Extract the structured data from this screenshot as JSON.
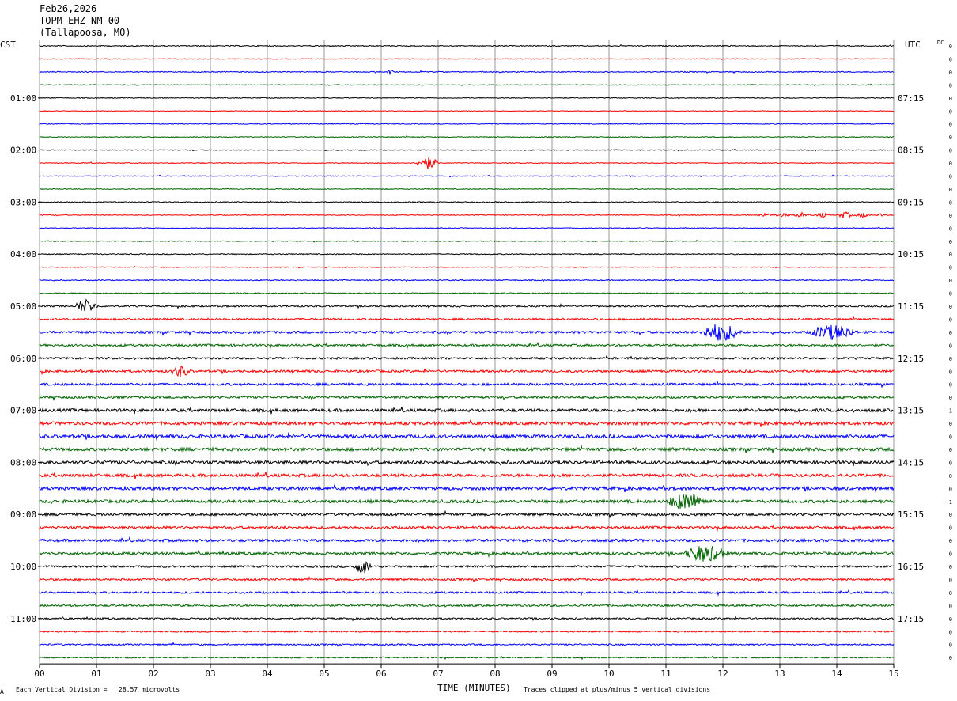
{
  "header": {
    "date": "Feb26,2026",
    "station": "TOPM EHZ NM 00",
    "location": "(Tallapoosa, MO)"
  },
  "axes": {
    "left_zone": "CST",
    "right_zone": "UTC",
    "dc_label": "DC",
    "xlabel": "TIME (MINUTES)",
    "x_ticks": [
      "00",
      "01",
      "02",
      "03",
      "04",
      "05",
      "06",
      "07",
      "08",
      "09",
      "10",
      "11",
      "12",
      "13",
      "14",
      "15"
    ],
    "left_hour_labels": [
      "01:00",
      "02:00",
      "03:00",
      "04:00",
      "05:00",
      "06:00",
      "07:00",
      "08:00",
      "09:00",
      "10:00",
      "11:00"
    ],
    "right_hour_labels": [
      "07:15",
      "08:15",
      "09:15",
      "10:15",
      "11:15",
      "12:15",
      "13:15",
      "14:15",
      "15:15",
      "16:15",
      "17:15"
    ]
  },
  "footer": {
    "scale_note": "Each Vertical Division =   28.57 microvolts",
    "clip_note": "Traces clipped at plus/minus 5 vertical divisions",
    "corner_mark": "A"
  },
  "colors": {
    "black": "#000000",
    "red": "#ff0000",
    "blue": "#0000ff",
    "green": "#006400",
    "grid": "#808080"
  },
  "chart_data": {
    "type": "helicorder",
    "minutes_per_line": 15,
    "rows": 48,
    "color_cycle": [
      "#000000",
      "#ff0000",
      "#0000ff",
      "#006400"
    ],
    "dc_offsets": [
      "0",
      "0",
      "0",
      "0",
      "0",
      "0",
      "0",
      "0",
      "0",
      "0",
      "0",
      "0",
      "0",
      "0",
      "0",
      "0",
      "0",
      "0",
      "0",
      "0",
      "0",
      "0",
      "0",
      "0",
      "0",
      "0",
      "0",
      "0",
      "-1",
      "0",
      "0",
      "0",
      "0",
      "0",
      "0",
      "-1",
      "0",
      "0",
      "0",
      "0",
      "0",
      "0",
      "0",
      "0",
      "0",
      "0",
      "0",
      "0"
    ],
    "row_noise_levels": [
      0.6,
      0.5,
      0.6,
      0.5,
      0.5,
      0.4,
      0.5,
      0.5,
      0.5,
      0.5,
      0.5,
      0.5,
      0.6,
      0.5,
      0.5,
      0.5,
      0.6,
      0.5,
      0.6,
      0.6,
      1.0,
      1.2,
      1.5,
      1.3,
      1.3,
      1.4,
      1.5,
      1.4,
      1.9,
      2.0,
      2.1,
      2.0,
      2.0,
      1.9,
      2.0,
      1.9,
      1.6,
      1.5,
      1.7,
      1.6,
      1.3,
      1.2,
      1.2,
      1.2,
      1.0,
      0.9,
      0.9,
      0.8
    ],
    "events": [
      {
        "row": 2,
        "minute": 6.1,
        "duration": 0.2,
        "amplitude": 3
      },
      {
        "row": 13,
        "minute": 13.7,
        "duration": 0.2,
        "amplitude": 2
      },
      {
        "row": 13,
        "minute": 14.0,
        "duration": 0.5,
        "amplitude": 2
      },
      {
        "row": 13,
        "minute": 14.4,
        "duration": 0.3,
        "amplitude": 2
      },
      {
        "row": 13,
        "minute": 12.6,
        "duration": 0.5,
        "amplitude": 2
      },
      {
        "row": 13,
        "minute": 12.9,
        "duration": 0.5,
        "amplitude": 2
      },
      {
        "row": 13,
        "minute": 13.2,
        "duration": 0.5,
        "amplitude": 2
      },
      {
        "row": 13,
        "minute": 13.6,
        "duration": 0.5,
        "amplitude": 2
      },
      {
        "row": 13,
        "minute": 14.0,
        "duration": 0.5,
        "amplitude": 2
      },
      {
        "row": 13,
        "minute": 14.3,
        "duration": 0.5,
        "amplitude": 2
      },
      {
        "row": 13,
        "minute": 14.7,
        "duration": 0.3,
        "amplitude": 2
      },
      {
        "row": 13,
        "minute": 15.0,
        "duration": 0.3,
        "amplitude": 2
      },
      {
        "row": 9,
        "minute": 6.6,
        "duration": 0.7,
        "amplitude": 9
      },
      {
        "row": 20,
        "minute": 0.6,
        "duration": 0.7,
        "amplitude": 9
      },
      {
        "row": 22,
        "minute": 11.6,
        "duration": 1.2,
        "amplitude": 12
      },
      {
        "row": 22,
        "minute": 13.5,
        "duration": 1.4,
        "amplitude": 10
      },
      {
        "row": 25,
        "minute": 2.3,
        "duration": 0.6,
        "amplitude": 7
      },
      {
        "row": 35,
        "minute": 11.0,
        "duration": 1.2,
        "amplitude": 11
      },
      {
        "row": 39,
        "minute": 11.3,
        "duration": 1.3,
        "amplitude": 11
      },
      {
        "row": 40,
        "minute": 5.5,
        "duration": 0.6,
        "amplitude": 8
      }
    ]
  }
}
